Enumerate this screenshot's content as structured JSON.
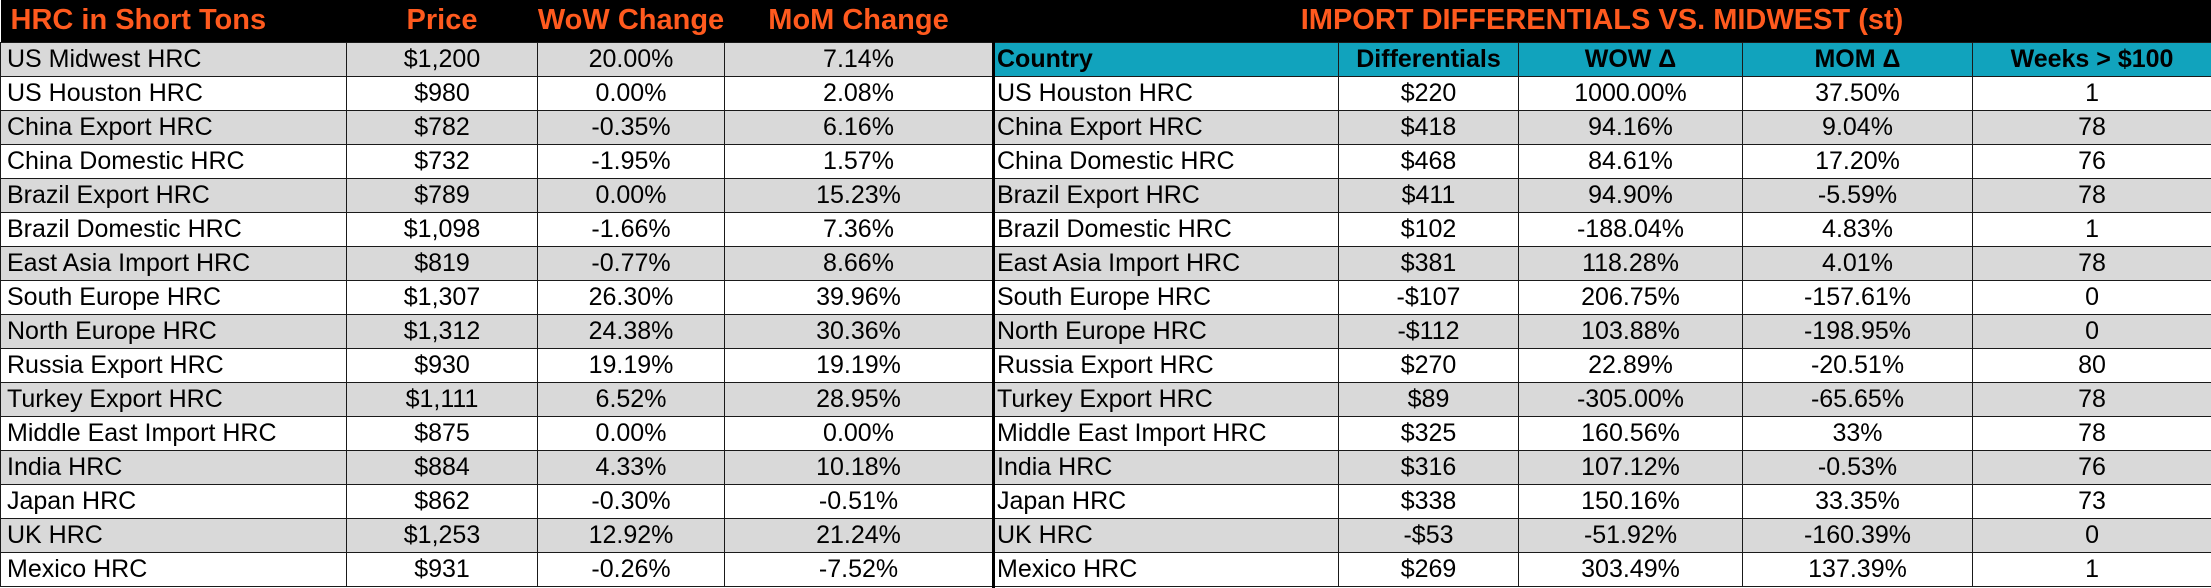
{
  "left_table": {
    "headers": [
      "HRC in Short Tons",
      "Price",
      "WoW Change",
      "MoM Change"
    ],
    "rows": [
      [
        "US Midwest HRC",
        "$1,200",
        "20.00%",
        "7.14%"
      ],
      [
        "US Houston HRC",
        "$980",
        "0.00%",
        "2.08%"
      ],
      [
        "China Export HRC",
        "$782",
        "-0.35%",
        "6.16%"
      ],
      [
        "China Domestic HRC",
        "$732",
        "-1.95%",
        "1.57%"
      ],
      [
        "Brazil Export HRC",
        "$789",
        "0.00%",
        "15.23%"
      ],
      [
        "Brazil Domestic HRC",
        "$1,098",
        "-1.66%",
        "7.36%"
      ],
      [
        "East Asia Import HRC",
        "$819",
        "-0.77%",
        "8.66%"
      ],
      [
        "South Europe HRC",
        "$1,307",
        "26.30%",
        "39.96%"
      ],
      [
        "North Europe HRC",
        "$1,312",
        "24.38%",
        "30.36%"
      ],
      [
        "Russia Export HRC",
        "$930",
        "19.19%",
        "19.19%"
      ],
      [
        "Turkey Export HRC",
        "$1,111",
        "6.52%",
        "28.95%"
      ],
      [
        "Middle East Import HRC",
        "$875",
        "0.00%",
        "0.00%"
      ],
      [
        "India HRC",
        "$884",
        "4.33%",
        "10.18%"
      ],
      [
        "Japan HRC",
        "$862",
        "-0.30%",
        "-0.51%"
      ],
      [
        "UK HRC",
        "$1,253",
        "12.92%",
        "21.24%"
      ],
      [
        "Mexico HRC",
        "$931",
        "-0.26%",
        "-7.52%"
      ]
    ]
  },
  "right_table": {
    "title": "IMPORT DIFFERENTIALS VS. MIDWEST (st)",
    "headers": [
      "Country",
      "Differentials",
      "WOW Δ",
      "MOM Δ",
      "Weeks > $100"
    ],
    "rows": [
      [
        "US Houston HRC",
        "$220",
        "1000.00%",
        "37.50%",
        "1"
      ],
      [
        "China Export HRC",
        "$418",
        "94.16%",
        "9.04%",
        "78"
      ],
      [
        "China Domestic HRC",
        "$468",
        "84.61%",
        "17.20%",
        "76"
      ],
      [
        "Brazil Export HRC",
        "$411",
        "94.90%",
        "-5.59%",
        "78"
      ],
      [
        "Brazil Domestic HRC",
        "$102",
        "-188.04%",
        "4.83%",
        "1"
      ],
      [
        "East Asia Import HRC",
        "$381",
        "118.28%",
        "4.01%",
        "78"
      ],
      [
        "South Europe HRC",
        "-$107",
        "206.75%",
        "-157.61%",
        "0"
      ],
      [
        "North Europe HRC",
        "-$112",
        "103.88%",
        "-198.95%",
        "0"
      ],
      [
        "Russia Export HRC",
        "$270",
        "22.89%",
        "-20.51%",
        "80"
      ],
      [
        "Turkey Export HRC",
        "$89",
        "-305.00%",
        "-65.65%",
        "78"
      ],
      [
        "Middle East Import HRC",
        "$325",
        "160.56%",
        "33%",
        "78"
      ],
      [
        "India HRC",
        "$316",
        "107.12%",
        "-0.53%",
        "76"
      ],
      [
        "Japan HRC",
        "$338",
        "150.16%",
        "33.35%",
        "73"
      ],
      [
        "UK HRC",
        "-$53",
        "-51.92%",
        "-160.39%",
        "0"
      ],
      [
        "Mexico HRC",
        "$269",
        "303.49%",
        "137.39%",
        "1"
      ]
    ]
  },
  "colors": {
    "header_bg": "#000000",
    "header_text": "#ff5a1e",
    "subheader_bg": "#11a3bd",
    "shade_row": "#d9d9d9"
  },
  "chart_data": [
    {
      "type": "table",
      "columns": [
        "HRC in Short Tons",
        "Price",
        "WoW Change",
        "MoM Change"
      ],
      "rows": [
        [
          "US Midwest HRC",
          1200,
          20.0,
          7.14
        ],
        [
          "US Houston HRC",
          980,
          0.0,
          2.08
        ],
        [
          "China Export HRC",
          782,
          -0.35,
          6.16
        ],
        [
          "China Domestic HRC",
          732,
          -1.95,
          1.57
        ],
        [
          "Brazil Export HRC",
          789,
          0.0,
          15.23
        ],
        [
          "Brazil Domestic HRC",
          1098,
          -1.66,
          7.36
        ],
        [
          "East Asia Import HRC",
          819,
          -0.77,
          8.66
        ],
        [
          "South Europe HRC",
          1307,
          26.3,
          39.96
        ],
        [
          "North Europe HRC",
          1312,
          24.38,
          30.36
        ],
        [
          "Russia Export HRC",
          930,
          19.19,
          19.19
        ],
        [
          "Turkey Export HRC",
          1111,
          6.52,
          28.95
        ],
        [
          "Middle East Import HRC",
          875,
          0.0,
          0.0
        ],
        [
          "India HRC",
          884,
          4.33,
          10.18
        ],
        [
          "Japan HRC",
          862,
          -0.3,
          -0.51
        ],
        [
          "UK HRC",
          1253,
          12.92,
          21.24
        ],
        [
          "Mexico HRC",
          931,
          -0.26,
          -7.52
        ]
      ]
    },
    {
      "type": "table",
      "title": "IMPORT DIFFERENTIALS VS. MIDWEST (st)",
      "columns": [
        "Country",
        "Differentials",
        "WOW Δ",
        "MOM Δ",
        "Weeks > $100"
      ],
      "rows": [
        [
          "US Houston HRC",
          220,
          1000.0,
          37.5,
          1
        ],
        [
          "China Export HRC",
          418,
          94.16,
          9.04,
          78
        ],
        [
          "China Domestic HRC",
          468,
          84.61,
          17.2,
          76
        ],
        [
          "Brazil Export HRC",
          411,
          94.9,
          -5.59,
          78
        ],
        [
          "Brazil Domestic HRC",
          102,
          -188.04,
          4.83,
          1
        ],
        [
          "East Asia Import HRC",
          381,
          118.28,
          4.01,
          78
        ],
        [
          "South Europe HRC",
          -107,
          206.75,
          -157.61,
          0
        ],
        [
          "North Europe HRC",
          -112,
          103.88,
          -198.95,
          0
        ],
        [
          "Russia Export HRC",
          270,
          22.89,
          -20.51,
          80
        ],
        [
          "Turkey Export HRC",
          89,
          -305.0,
          -65.65,
          78
        ],
        [
          "Middle East Import HRC",
          325,
          160.56,
          33,
          78
        ],
        [
          "India HRC",
          316,
          107.12,
          -0.53,
          76
        ],
        [
          "Japan HRC",
          338,
          150.16,
          33.35,
          73
        ],
        [
          "UK HRC",
          -53,
          -51.92,
          -160.39,
          0
        ],
        [
          "Mexico HRC",
          269,
          303.49,
          137.39,
          1
        ]
      ]
    }
  ]
}
